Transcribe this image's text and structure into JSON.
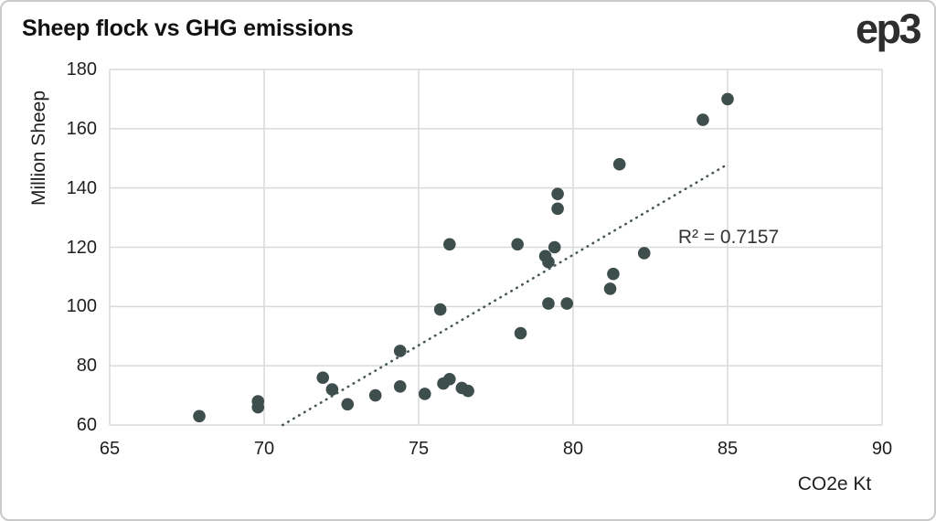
{
  "header": {
    "title": "Sheep flock vs GHG emissions",
    "logo": "ep3"
  },
  "chart_data": {
    "type": "scatter",
    "title": "Sheep flock vs GHG emissions",
    "xlabel": "CO2e Kt",
    "ylabel": "Million Sheep",
    "xlim": [
      65,
      90
    ],
    "ylim": [
      60,
      180
    ],
    "xticks": [
      65,
      70,
      75,
      80,
      85,
      90
    ],
    "yticks": [
      60,
      80,
      100,
      120,
      140,
      160,
      180
    ],
    "grid": true,
    "legend": "none",
    "point_color": "#3e4e4c",
    "trendline_color": "#465654",
    "gridline_color": "#d9d9d9",
    "points": [
      [
        67.9,
        63
      ],
      [
        69.8,
        66
      ],
      [
        69.8,
        68
      ],
      [
        71.9,
        76
      ],
      [
        72.2,
        72
      ],
      [
        72.7,
        67
      ],
      [
        73.6,
        70
      ],
      [
        74.4,
        73
      ],
      [
        74.4,
        85
      ],
      [
        75.2,
        70.5
      ],
      [
        75.7,
        99
      ],
      [
        75.8,
        74
      ],
      [
        76.0,
        75.5
      ],
      [
        76.0,
        121
      ],
      [
        76.4,
        72.5
      ],
      [
        76.6,
        71.5
      ],
      [
        78.2,
        121
      ],
      [
        78.3,
        91
      ],
      [
        79.1,
        117
      ],
      [
        79.2,
        115
      ],
      [
        79.2,
        101
      ],
      [
        79.4,
        120
      ],
      [
        79.5,
        133
      ],
      [
        79.5,
        138
      ],
      [
        79.8,
        101
      ],
      [
        81.2,
        106
      ],
      [
        81.3,
        111
      ],
      [
        81.5,
        148
      ],
      [
        82.3,
        118
      ],
      [
        84.2,
        163
      ],
      [
        85.0,
        170
      ]
    ],
    "trendline": {
      "style": "dotted",
      "x1": 70.6,
      "y1": 60,
      "x2": 85.0,
      "y2": 148
    },
    "annotation": {
      "text": "R² = 0.7157",
      "x": 85,
      "y": 123
    }
  }
}
